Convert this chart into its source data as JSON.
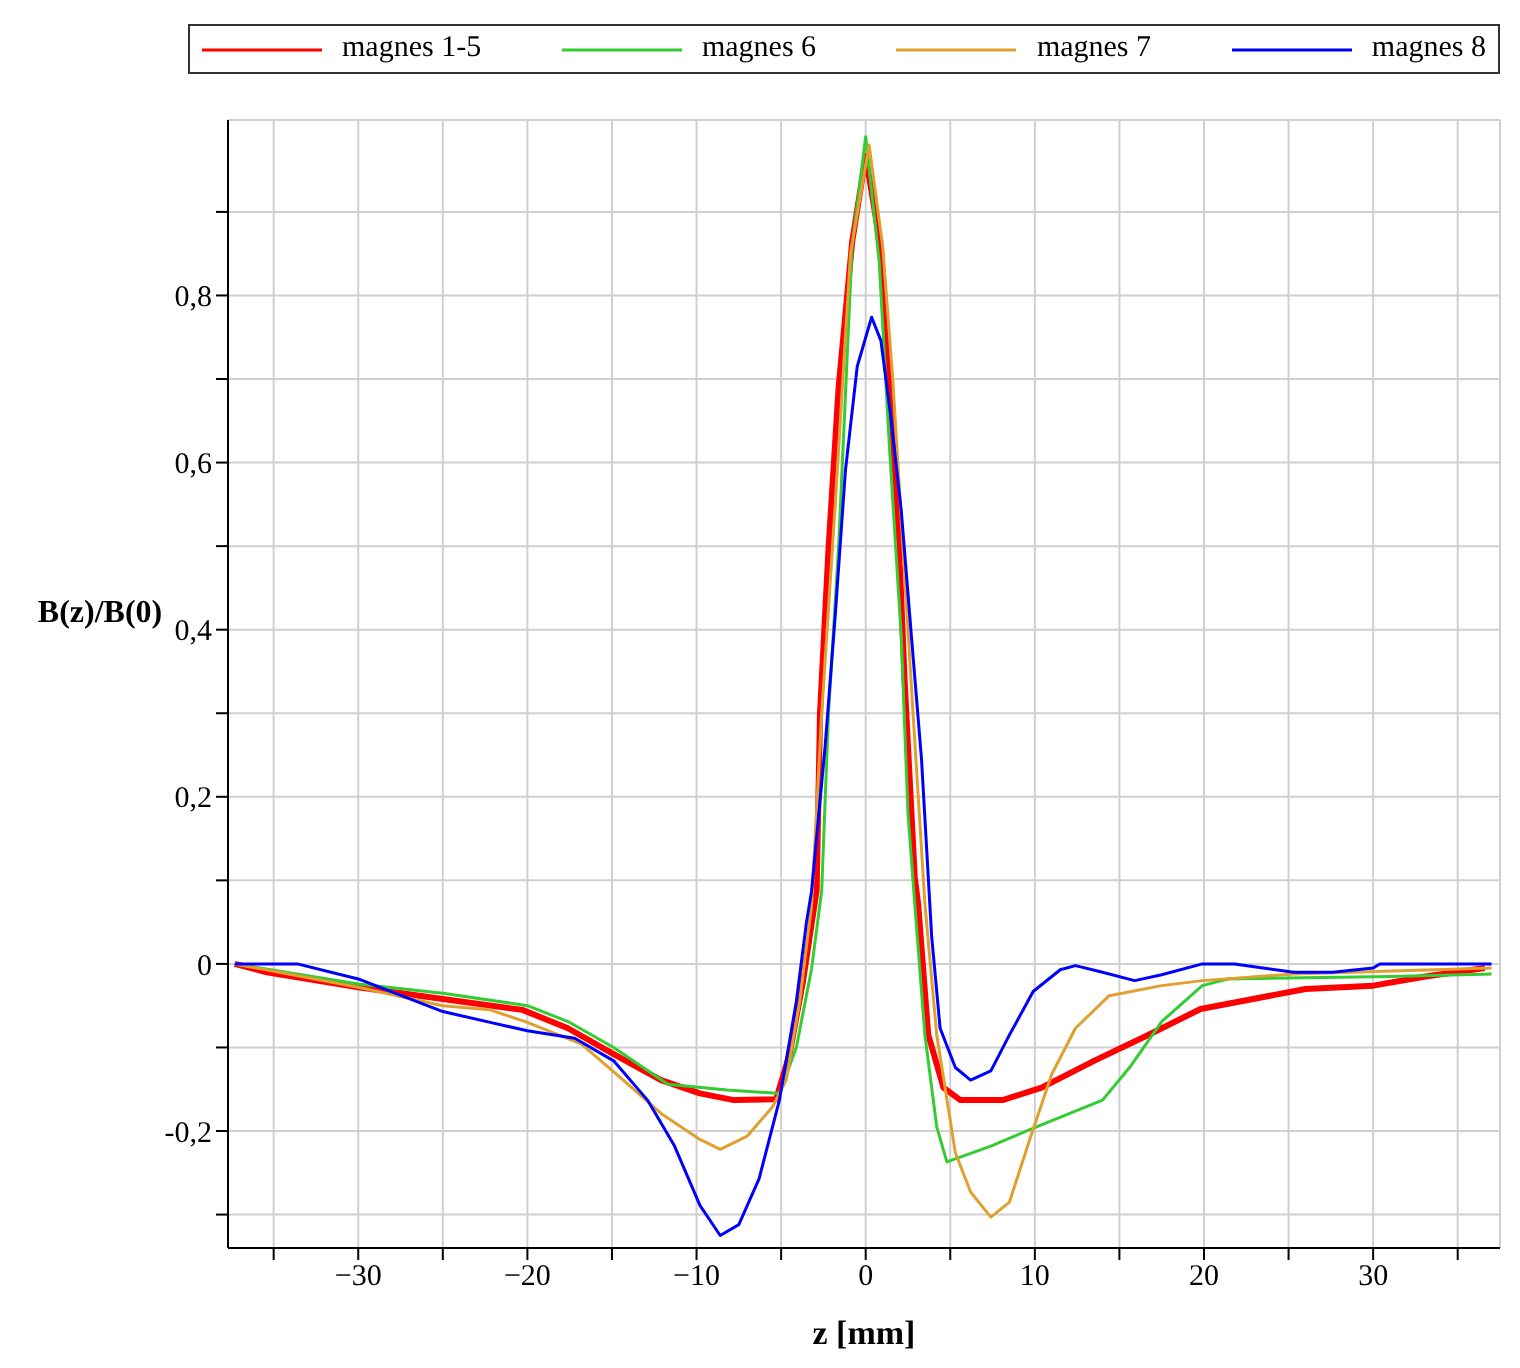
{
  "chart_data": {
    "type": "line",
    "xlabel": "z [mm]",
    "ylabel": "B(z)/B(0)",
    "xlim": [
      -37.7,
      37.5
    ],
    "ylim": [
      -0.34,
      1.01
    ],
    "xticks": [
      {
        "value": -35,
        "label": null
      },
      {
        "value": -30,
        "label": "−30"
      },
      {
        "value": -25,
        "label": null
      },
      {
        "value": -20,
        "label": "−20"
      },
      {
        "value": -15,
        "label": null
      },
      {
        "value": -10,
        "label": "−10"
      },
      {
        "value": -5,
        "label": null
      },
      0,
      {
        "value": 5,
        "label": null
      },
      10,
      {
        "value": 15,
        "label": null
      },
      20,
      {
        "value": 25,
        "label": null
      },
      30,
      {
        "value": 35,
        "label": null
      }
    ],
    "yticks": [
      {
        "value": -0.3,
        "label": null
      },
      {
        "value": -0.2,
        "label": "-0,2"
      },
      {
        "value": -0.1,
        "label": null
      },
      0,
      {
        "value": 0.1,
        "label": null
      },
      {
        "value": 0.2,
        "label": "0,2"
      },
      {
        "value": 0.3,
        "label": null
      },
      {
        "value": 0.4,
        "label": "0,4"
      },
      {
        "value": 0.5,
        "label": null
      },
      {
        "value": 0.6,
        "label": "0,6"
      },
      {
        "value": 0.7,
        "label": null
      },
      {
        "value": 0.8,
        "label": "0,8"
      },
      {
        "value": 0.9,
        "label": null
      }
    ],
    "grid": true,
    "legend": "top",
    "marker": "none",
    "line_style": "solid",
    "series": [
      {
        "name": "magnes 1-5",
        "color": "#ff0000",
        "x": [
          -37.3,
          -35.4,
          -30,
          -25,
          -20.3,
          -17.6,
          -14.9,
          -12.1,
          -9.8,
          -7.8,
          -5.3,
          -4.5,
          -3.7,
          -2.9,
          -2.7,
          -2.2,
          -1.6,
          -0.8,
          0,
          0.9,
          1.3,
          1.9,
          2.3,
          2.9,
          3.1,
          3.7,
          4.6,
          5.6,
          8.1,
          10.4,
          13.5,
          16.7,
          19.8,
          22.9,
          26,
          30,
          33.1,
          36.6
        ],
        "values": [
          0,
          -0.01,
          -0.028,
          -0.042,
          -0.055,
          -0.077,
          -0.108,
          -0.139,
          -0.155,
          -0.163,
          -0.162,
          -0.108,
          -0.02,
          0.088,
          0.3,
          0.496,
          0.69,
          0.864,
          0.967,
          0.856,
          0.73,
          0.535,
          0.34,
          0.104,
          0.072,
          -0.085,
          -0.148,
          -0.163,
          -0.163,
          -0.148,
          -0.116,
          -0.085,
          -0.054,
          -0.042,
          -0.03,
          -0.026,
          -0.015,
          -0.005
        ]
      },
      {
        "name": "magnes 6",
        "color": "#33cc33",
        "x": [
          -37.3,
          -30,
          -25,
          -20,
          -17.6,
          -14.9,
          -11.7,
          -8.2,
          -5.1,
          -4.1,
          -3.2,
          -2.6,
          -2.2,
          -1.6,
          -0.8,
          0,
          0.8,
          1.4,
          2.1,
          2.5,
          2.9,
          3.5,
          4.2,
          4.8,
          7.4,
          10.1,
          14,
          15.6,
          17.5,
          19.9,
          21.4,
          31.1,
          37
        ],
        "values": [
          0,
          -0.024,
          -0.035,
          -0.05,
          -0.069,
          -0.1,
          -0.144,
          -0.151,
          -0.155,
          -0.1,
          -0.006,
          0.088,
          0.3,
          0.5,
          0.86,
          0.99,
          0.84,
          0.62,
          0.393,
          0.18,
          0.072,
          -0.085,
          -0.195,
          -0.237,
          -0.218,
          -0.195,
          -0.163,
          -0.124,
          -0.069,
          -0.026,
          -0.018,
          -0.015,
          -0.012
        ]
      },
      {
        "name": "magnes 7",
        "color": "#e0a030",
        "x": [
          -37.3,
          -30,
          -25,
          -22.2,
          -20,
          -16.8,
          -14.5,
          -12.1,
          -9.8,
          -8.6,
          -7,
          -5.5,
          -4.7,
          -3.9,
          -3.2,
          -2.6,
          -1.8,
          -0.9,
          0.2,
          1,
          1.6,
          2.2,
          2.8,
          3.5,
          4.2,
          5.3,
          6.2,
          7.4,
          8.5,
          9.7,
          11,
          12.4,
          14.4,
          17.5,
          19.9,
          25.3,
          37
        ],
        "values": [
          0,
          -0.028,
          -0.05,
          -0.055,
          -0.07,
          -0.096,
          -0.136,
          -0.179,
          -0.21,
          -0.222,
          -0.206,
          -0.171,
          -0.139,
          -0.045,
          0.07,
          0.3,
          0.55,
          0.85,
          0.98,
          0.86,
          0.7,
          0.5,
          0.3,
          0.072,
          -0.085,
          -0.226,
          -0.273,
          -0.303,
          -0.285,
          -0.21,
          -0.132,
          -0.077,
          -0.038,
          -0.026,
          -0.02,
          -0.012,
          -0.005
        ]
      },
      {
        "name": "magnes 8",
        "color": "#0000ff",
        "x": [
          -37.3,
          -33.6,
          -30,
          -25,
          -22.2,
          -20,
          -17.2,
          -14.9,
          -12.9,
          -11.3,
          -9.8,
          -8.6,
          -7.5,
          -6.3,
          -5.1,
          -4.1,
          -3.5,
          -3.2,
          -2.4,
          -1.8,
          -1.2,
          -0.5,
          0.35,
          0.9,
          1.5,
          2.1,
          2.7,
          3.3,
          3.9,
          4.4,
          5.3,
          6.2,
          7.4,
          8.5,
          9.9,
          11.5,
          12.4,
          14,
          15.9,
          17.5,
          19.9,
          21.8,
          25.3,
          27.6,
          30,
          30.4,
          37
        ],
        "values": [
          0,
          0,
          -0.018,
          -0.057,
          -0.07,
          -0.08,
          -0.089,
          -0.116,
          -0.163,
          -0.218,
          -0.289,
          -0.325,
          -0.312,
          -0.257,
          -0.163,
          -0.045,
          0.05,
          0.087,
          0.26,
          0.417,
          0.59,
          0.715,
          0.774,
          0.746,
          0.652,
          0.543,
          0.393,
          0.245,
          0.033,
          -0.077,
          -0.124,
          -0.139,
          -0.128,
          -0.085,
          -0.033,
          -0.007,
          -0.002,
          -0.01,
          -0.02,
          -0.013,
          0,
          0,
          -0.01,
          -0.01,
          -0.005,
          0,
          0
        ]
      }
    ]
  }
}
